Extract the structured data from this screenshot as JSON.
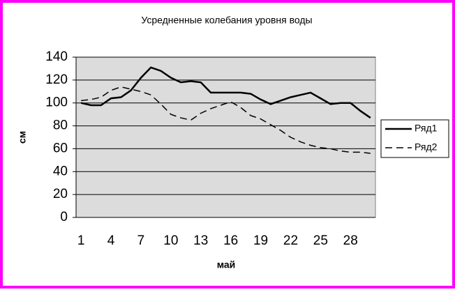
{
  "chart_data": {
    "type": "line",
    "title": "Усредненные колебания уровня воды",
    "x_label": "май",
    "y_label": "см",
    "categories": [
      "1",
      null,
      null,
      "4",
      null,
      null,
      "7",
      null,
      null,
      "10",
      null,
      null,
      "13",
      null,
      null,
      "16",
      null,
      null,
      "19",
      null,
      null,
      "22",
      null,
      null,
      "25",
      null,
      null,
      "28",
      null,
      null
    ],
    "series": [
      {
        "name": "Ряд1",
        "color": "#000000",
        "dash": "solid",
        "values": [
          100,
          98,
          98,
          104,
          105,
          111,
          122,
          131,
          128,
          122,
          118,
          119,
          118,
          109,
          109,
          109,
          109,
          108,
          103,
          99,
          102,
          105,
          107,
          109,
          104,
          99,
          100,
          100,
          93,
          87
        ]
      },
      {
        "name": "Ряд2",
        "color": "#000000",
        "dash": "dashed",
        "values": [
          102,
          103,
          105,
          111,
          114,
          112,
          110,
          107,
          99,
          90,
          87,
          85,
          91,
          95,
          98,
          101,
          96,
          89,
          86,
          81,
          76,
          70,
          66,
          63,
          61,
          60,
          58,
          57,
          57,
          56
        ]
      }
    ],
    "ylim": [
      0,
      140
    ],
    "yticks": [
      0,
      20,
      40,
      60,
      80,
      100,
      120,
      140
    ],
    "grid": true,
    "legend": "right"
  }
}
